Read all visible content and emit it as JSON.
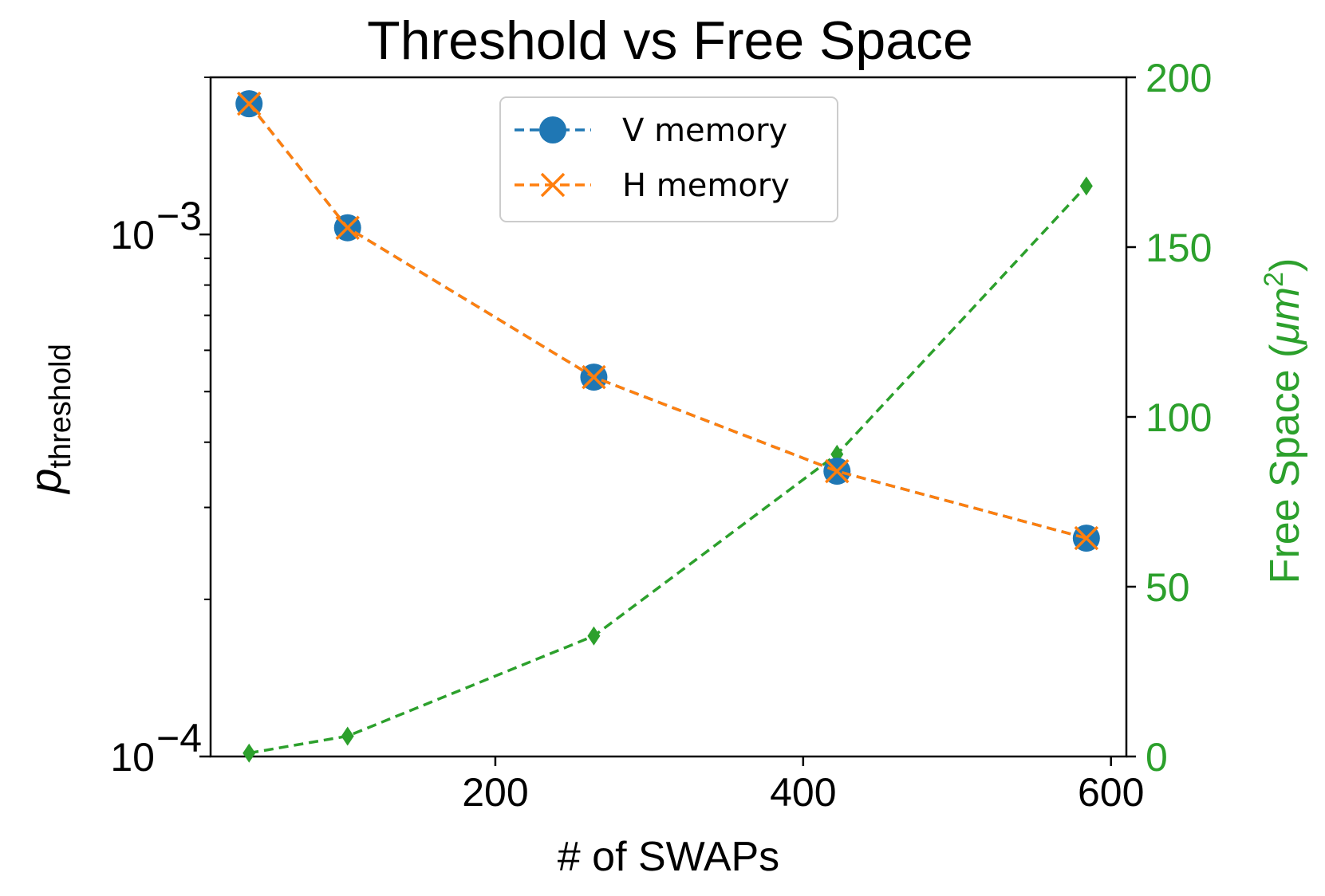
{
  "chart_data": {
    "type": "line",
    "title": "Threshold vs Free Space",
    "xlabel": "# of SWAPs",
    "ylabel_main": "p",
    "ylabel_sub": "threshold",
    "y2label": "Free Space (",
    "y2label_unit": "μm",
    "y2label_exp": "2",
    "y2label_close": ")",
    "xlim": [
      15,
      610
    ],
    "ylim_log": [
      0.0001,
      0.002
    ],
    "y2lim": [
      0,
      200
    ],
    "x_ticks": [
      200,
      400,
      600
    ],
    "x_tick_labels": [
      "200",
      "400",
      "600"
    ],
    "y_major_ticks": [
      {
        "value": 0.0001,
        "base": "10",
        "exp": "−4"
      },
      {
        "value": 0.001,
        "base": "10",
        "exp": "−3"
      }
    ],
    "y_minor_ticks": [
      0.0002,
      0.0003,
      0.0004,
      0.0005,
      0.0006,
      0.0007,
      0.0008,
      0.0009,
      0.002
    ],
    "y2_ticks": [
      0,
      50,
      100,
      150,
      200
    ],
    "y2_tick_labels": [
      "0",
      "50",
      "100",
      "150",
      "200"
    ],
    "series": [
      {
        "name": "V memory",
        "axis": "left",
        "color": "#1f77b4",
        "marker": "circle",
        "linestyle": "dashed",
        "x": [
          40,
          104,
          264,
          422,
          584
        ],
        "values": [
          0.00178,
          0.00103,
          0.000533,
          0.000352,
          0.000262
        ]
      },
      {
        "name": "H memory",
        "axis": "left",
        "color": "#ff7f0e",
        "marker": "x",
        "linestyle": "dashed",
        "x": [
          40,
          104,
          264,
          422,
          584
        ],
        "values": [
          0.00178,
          0.00103,
          0.000533,
          0.000352,
          0.000262
        ]
      },
      {
        "name": "Free Space",
        "axis": "right",
        "color": "#2ca02c",
        "marker": "diamond",
        "linestyle": "dashed",
        "x": [
          40,
          104,
          264,
          422,
          584
        ],
        "values": [
          1,
          6,
          35.5,
          89,
          168
        ]
      }
    ],
    "legend": {
      "position": "top-center",
      "entries": [
        "V memory",
        "H memory"
      ]
    }
  }
}
